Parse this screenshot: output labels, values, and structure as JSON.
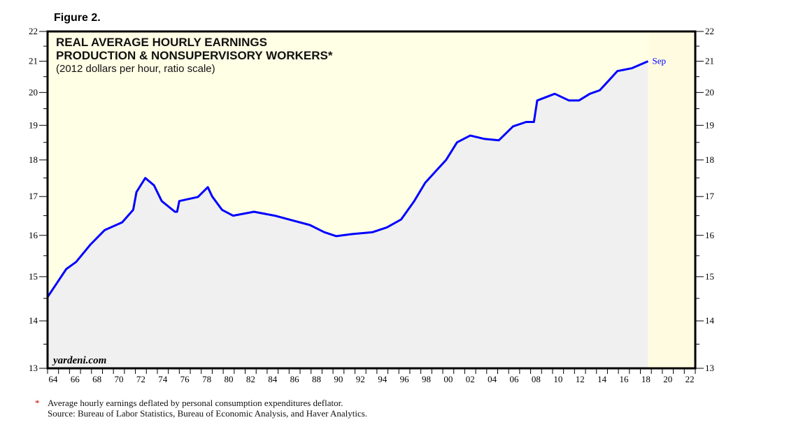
{
  "figure_label": "Figure 2.",
  "chart_data": {
    "type": "area",
    "title": [
      "REAL AVERAGE HOURLY EARNINGS",
      "PRODUCTION & NONSUPERVISORY WORKERS*"
    ],
    "subtitle": "(2012 dollars per hour, ratio scale)",
    "y_scale": "log",
    "ylim": [
      13,
      22
    ],
    "y_ticks": [
      13,
      14,
      15,
      16,
      17,
      18,
      19,
      20,
      21,
      22
    ],
    "xlim": [
      1964,
      2023
    ],
    "x_tick_labels": [
      "64",
      "66",
      "68",
      "70",
      "72",
      "74",
      "76",
      "78",
      "80",
      "82",
      "84",
      "86",
      "88",
      "90",
      "92",
      "94",
      "96",
      "98",
      "00",
      "02",
      "04",
      "06",
      "08",
      "10",
      "12",
      "14",
      "16",
      "18",
      "20",
      "22"
    ],
    "forecast_shade_start": 2018.75,
    "end_label": "Sep",
    "colors": {
      "line": "#0000ff",
      "fill": "#f0f0f0",
      "background": "#ffffe6"
    },
    "x": [
      1964.0,
      1965.7,
      1966.6,
      1967.9,
      1969.2,
      1970.8,
      1971.8,
      1972.1,
      1972.9,
      1973.7,
      1974.4,
      1975.6,
      1975.8,
      1976.0,
      1977.7,
      1978.6,
      1979.0,
      1979.9,
      1980.9,
      1982.8,
      1984.7,
      1986.0,
      1987.9,
      1989.2,
      1990.3,
      1991.7,
      1993.6,
      1994.9,
      1996.2,
      1997.4,
      1998.4,
      1999.4,
      2000.3,
      2001.3,
      2002.5,
      2003.8,
      2005.1,
      2006.4,
      2007.6,
      2008.3,
      2008.6,
      2010.2,
      2011.5,
      2012.4,
      2013.4,
      2014.3,
      2015.0,
      2015.9,
      2017.2,
      2018.7
    ],
    "values": [
      14.53,
      15.18,
      15.35,
      15.77,
      16.13,
      16.33,
      16.65,
      17.12,
      17.5,
      17.3,
      16.88,
      16.6,
      16.6,
      16.88,
      16.99,
      17.25,
      17.0,
      16.65,
      16.5,
      16.6,
      16.5,
      16.4,
      16.26,
      16.08,
      15.98,
      16.03,
      16.08,
      16.2,
      16.4,
      16.88,
      17.37,
      17.7,
      18.0,
      18.5,
      18.7,
      18.6,
      18.56,
      18.97,
      19.1,
      19.1,
      19.75,
      19.96,
      19.75,
      19.75,
      19.96,
      20.07,
      20.33,
      20.68,
      20.77,
      21.0
    ]
  },
  "watermark": "yardeni.com",
  "footnote_marker": "*",
  "footnote": "Average hourly earnings deflated by personal consumption expenditures deflator.",
  "source": "Source: Bureau of Labor Statistics, Bureau of Economic Analysis, and Haver Analytics."
}
